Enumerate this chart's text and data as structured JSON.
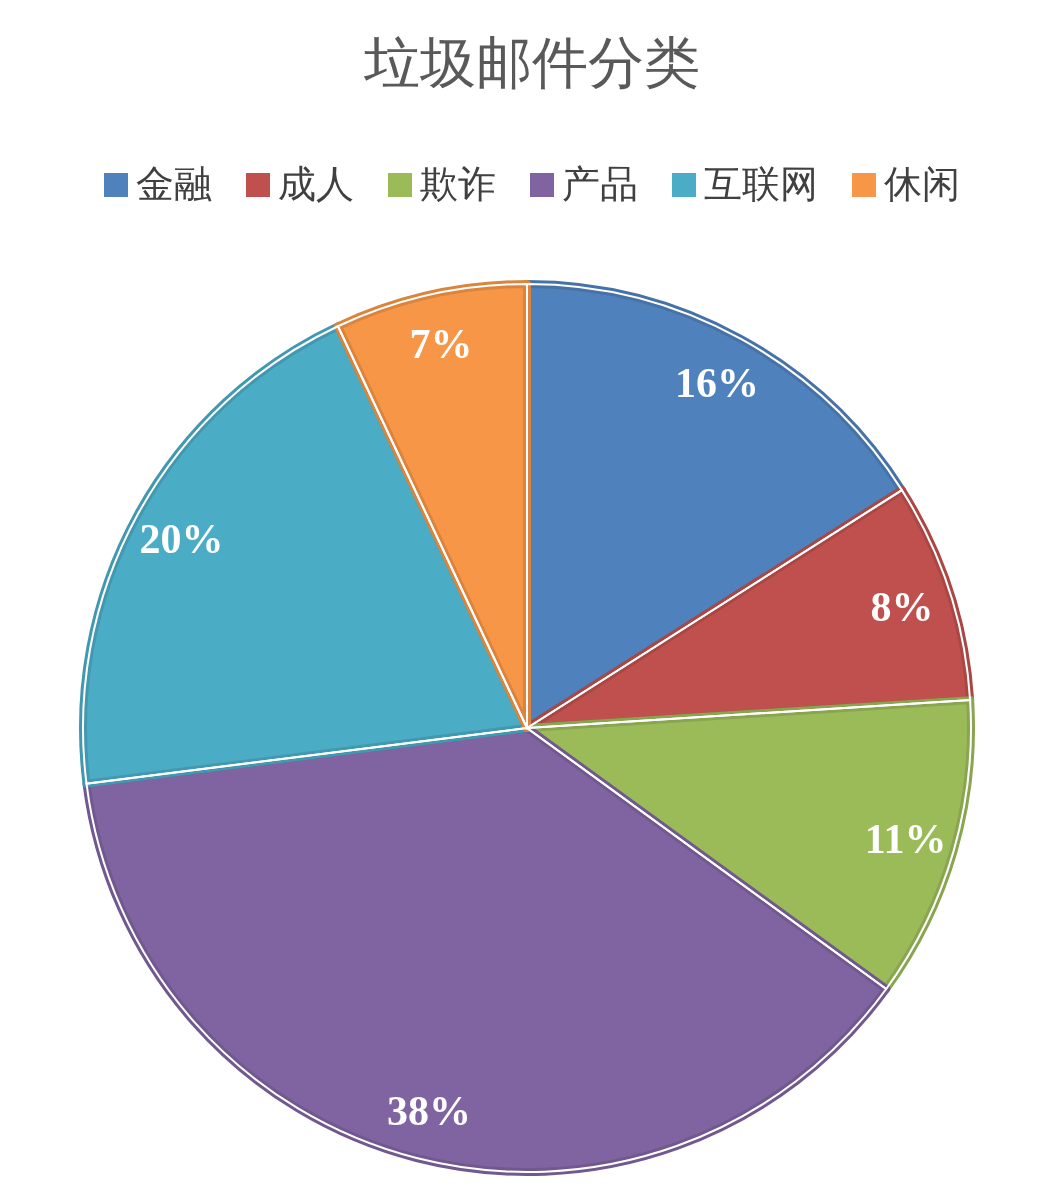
{
  "chart_data": {
    "type": "pie",
    "title": "垃圾邮件分类",
    "categories": [
      "金融",
      "成人",
      "欺诈",
      "产品",
      "互联网",
      "休闲"
    ],
    "values": [
      16,
      8,
      11,
      38,
      20,
      7
    ],
    "colors": [
      "#4f81bd",
      "#c0504d",
      "#9bbb59",
      "#8064a2",
      "#4bacc6",
      "#f79646"
    ],
    "value_labels": [
      "16%",
      "8%",
      "11%",
      "38%",
      "20%",
      "7%"
    ],
    "legend": "top"
  }
}
